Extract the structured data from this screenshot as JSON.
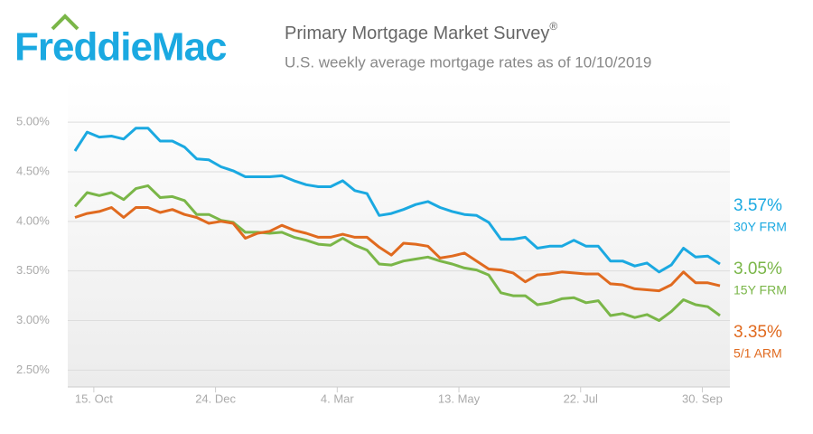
{
  "header": {
    "logo": "FreddieMac",
    "title": "Primary Mortgage Market Survey",
    "title_mark": "®",
    "subtitle": "U.S. weekly average mortgage rates as of 10/10/2019"
  },
  "chart_data": {
    "type": "line",
    "categories": [
      null,
      null,
      "15. Oct",
      null,
      null,
      null,
      null,
      null,
      null,
      null,
      null,
      null,
      "24. Dec",
      null,
      null,
      null,
      null,
      null,
      null,
      null,
      null,
      null,
      "4. Mar",
      null,
      null,
      null,
      null,
      null,
      null,
      null,
      null,
      null,
      "13. May",
      null,
      null,
      null,
      null,
      null,
      null,
      null,
      null,
      null,
      "22. Jul",
      null,
      null,
      null,
      null,
      null,
      null,
      null,
      null,
      null,
      "30. Sep",
      null
    ],
    "ylim": [
      2.33,
      5.43
    ],
    "yticks": [
      {
        "value": 2.5,
        "label": "2.50%"
      },
      {
        "value": 3,
        "label": "3.00%"
      },
      {
        "value": 3.5,
        "label": "3.50%"
      },
      {
        "value": 4,
        "label": "4.00%"
      },
      {
        "value": 4.5,
        "label": "4.50%"
      },
      {
        "value": 5,
        "label": "5.00%"
      }
    ],
    "grid": true,
    "series": [
      {
        "name": "30Y FRM",
        "color": "#1ba9e1",
        "values": [
          4.71,
          4.9,
          4.85,
          4.86,
          4.83,
          4.94,
          4.94,
          4.81,
          4.81,
          4.75,
          4.63,
          4.62,
          4.55,
          4.51,
          4.45,
          4.45,
          4.45,
          4.46,
          4.41,
          4.37,
          4.35,
          4.35,
          4.41,
          4.31,
          4.28,
          4.06,
          4.08,
          4.12,
          4.17,
          4.2,
          4.14,
          4.1,
          4.07,
          4.06,
          3.99,
          3.82,
          3.82,
          3.84,
          3.73,
          3.75,
          3.75,
          3.81,
          3.75,
          3.75,
          3.6,
          3.6,
          3.55,
          3.58,
          3.49,
          3.56,
          3.73,
          3.64,
          3.65,
          3.57
        ],
        "value_labels": [
          null,
          null,
          null,
          null,
          null,
          null,
          null,
          null,
          null,
          null,
          null,
          null,
          null,
          null,
          null,
          null,
          null,
          null,
          null,
          null,
          null,
          null,
          null,
          null,
          null,
          null,
          null,
          null,
          null,
          null,
          null,
          null,
          null,
          null,
          null,
          null,
          null,
          null,
          null,
          null,
          null,
          null,
          null,
          null,
          null,
          null,
          null,
          null,
          null,
          null,
          null,
          null,
          null,
          "3.57%"
        ]
      },
      {
        "name": "15Y FRM",
        "color": "#7ab648",
        "values": [
          4.15,
          4.29,
          4.26,
          4.29,
          4.22,
          4.33,
          4.36,
          4.24,
          4.25,
          4.21,
          4.07,
          4.07,
          4.01,
          3.99,
          3.89,
          3.89,
          3.88,
          3.89,
          3.84,
          3.81,
          3.77,
          3.76,
          3.83,
          3.76,
          3.71,
          3.57,
          3.56,
          3.6,
          3.62,
          3.64,
          3.6,
          3.57,
          3.53,
          3.51,
          3.46,
          3.28,
          3.25,
          3.25,
          3.16,
          3.18,
          3.22,
          3.23,
          3.18,
          3.2,
          3.05,
          3.07,
          3.03,
          3.06,
          3.0,
          3.09,
          3.21,
          3.16,
          3.14,
          3.05
        ],
        "value_labels": [
          null,
          null,
          null,
          null,
          null,
          null,
          null,
          null,
          null,
          null,
          null,
          null,
          null,
          null,
          null,
          null,
          null,
          null,
          null,
          null,
          null,
          null,
          null,
          null,
          null,
          null,
          null,
          null,
          null,
          null,
          null,
          null,
          null,
          null,
          null,
          null,
          null,
          null,
          null,
          null,
          null,
          null,
          null,
          null,
          null,
          null,
          null,
          null,
          null,
          null,
          null,
          null,
          null,
          "3.05%"
        ]
      },
      {
        "name": "5/1 ARM",
        "color": "#e06a1f",
        "values": [
          4.04,
          4.08,
          4.1,
          4.14,
          4.04,
          4.14,
          4.14,
          4.09,
          4.12,
          4.07,
          4.04,
          3.98,
          4.0,
          3.98,
          3.83,
          3.88,
          3.9,
          3.96,
          3.91,
          3.88,
          3.84,
          3.84,
          3.87,
          3.84,
          3.84,
          3.74,
          3.66,
          3.78,
          3.77,
          3.75,
          3.63,
          3.65,
          3.68,
          3.6,
          3.52,
          3.51,
          3.48,
          3.39,
          3.46,
          3.47,
          3.49,
          3.48,
          3.47,
          3.47,
          3.37,
          3.36,
          3.32,
          3.31,
          3.3,
          3.36,
          3.49,
          3.38,
          3.38,
          3.35
        ],
        "value_labels": [
          null,
          null,
          null,
          null,
          null,
          null,
          null,
          null,
          null,
          null,
          null,
          null,
          null,
          null,
          null,
          null,
          null,
          null,
          null,
          null,
          null,
          null,
          null,
          null,
          null,
          null,
          null,
          null,
          null,
          null,
          null,
          null,
          null,
          null,
          null,
          null,
          null,
          null,
          null,
          null,
          null,
          null,
          null,
          null,
          null,
          null,
          null,
          null,
          null,
          null,
          null,
          null,
          null,
          "3.35%"
        ]
      }
    ]
  }
}
